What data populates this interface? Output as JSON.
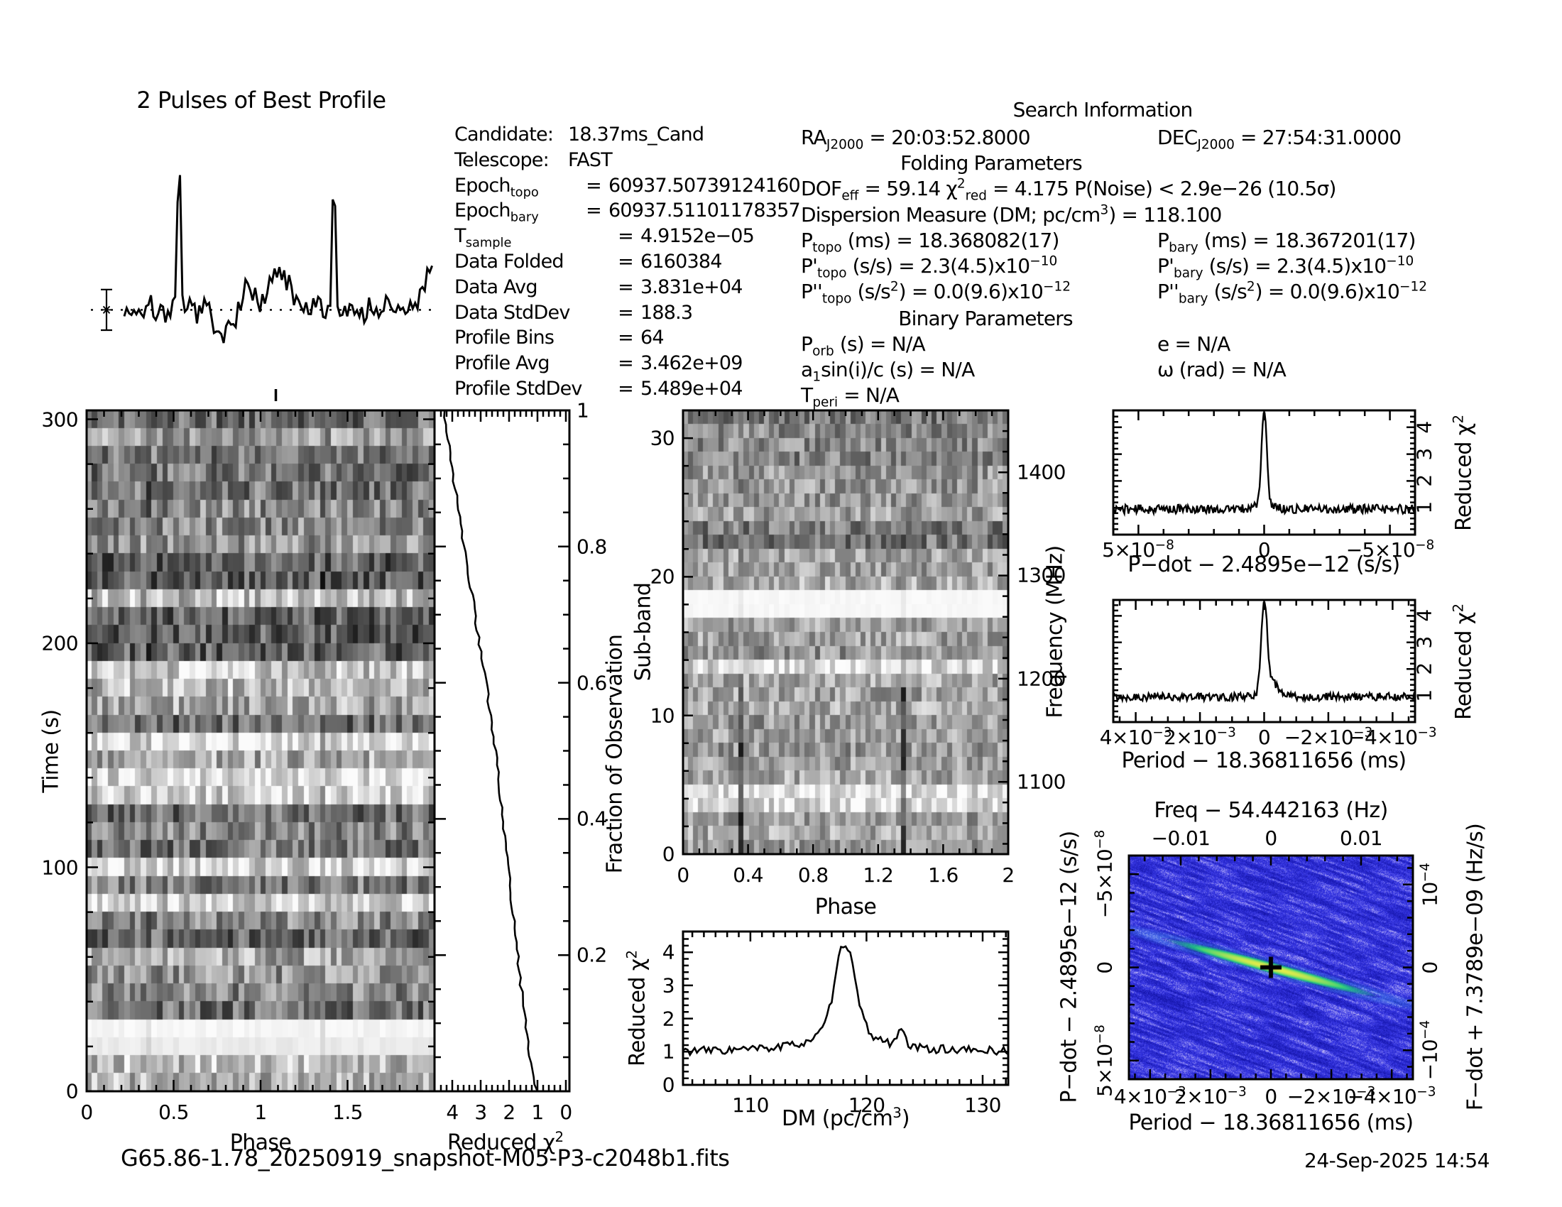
{
  "profile_title": "2 Pulses of Best Profile",
  "filename": "G65.86-1.78_20250919_snapshot-M05-P3-c2048b1.fits",
  "generated": "24-Sep-2025 14:54",
  "info_left": {
    "lines": [
      {
        "label": [
          {
            "t": "Candidate:"
          }
        ],
        "eq": "",
        "value": "18.37ms_Cand",
        "labw": 160
      },
      {
        "label": [
          {
            "t": "Telescope:"
          }
        ],
        "eq": "",
        "value": "FAST",
        "labw": 160
      },
      {
        "label": [
          {
            "t": "Epoch"
          },
          {
            "t": "topo",
            "s": "sub"
          }
        ],
        "eq": "=",
        "value": "60937.50739124160",
        "labw": 175
      },
      {
        "label": [
          {
            "t": "Epoch"
          },
          {
            "t": "bary",
            "s": "sub"
          }
        ],
        "eq": "=",
        "value": "60937.51101178357",
        "labw": 175
      },
      {
        "label": [
          {
            "t": "T"
          },
          {
            "t": "sample",
            "s": "sub"
          }
        ],
        "eq": "=",
        "value": "4.9152e−05",
        "labw": 220
      },
      {
        "label": [
          {
            "t": "Data Folded"
          }
        ],
        "eq": "=",
        "value": "6160384",
        "labw": 220
      },
      {
        "label": [
          {
            "t": "Data Avg"
          }
        ],
        "eq": "=",
        "value": "3.831e+04",
        "labw": 220
      },
      {
        "label": [
          {
            "t": "Data StdDev"
          }
        ],
        "eq": "=",
        "value": "188.3",
        "labw": 220
      },
      {
        "label": [
          {
            "t": "Profile Bins"
          }
        ],
        "eq": "=",
        "value": "64",
        "labw": 220
      },
      {
        "label": [
          {
            "t": "Profile Avg"
          }
        ],
        "eq": "=",
        "value": "3.462e+09",
        "labw": 220
      },
      {
        "label": [
          {
            "t": "Profile StdDev"
          }
        ],
        "eq": "=",
        "value": "5.489e+04",
        "labw": 220
      }
    ]
  },
  "search_info": {
    "title": "Search Information",
    "ra": [
      {
        "t": "RA"
      },
      {
        "t": "J2000",
        "s": "sub"
      },
      {
        "t": " = 20:03:52.8000"
      }
    ],
    "dec": [
      {
        "t": "DEC"
      },
      {
        "t": "J2000",
        "s": "sub"
      },
      {
        "t": " = 27:54:31.0000"
      }
    ],
    "folding_header": "Folding Parameters",
    "dof": [
      {
        "t": "DOF"
      },
      {
        "t": "eff",
        "s": "sub"
      },
      {
        "t": " = 59.14   "
      },
      {
        "t": "χ"
      },
      {
        "t": "2",
        "s": "sup"
      },
      {
        "t": "red",
        "s": "sub"
      },
      {
        "t": " = 4.175   P(Noise) < 2.9e−26   (10.5σ)"
      }
    ],
    "dm_line": [
      {
        "t": "Dispersion Measure (DM; pc/cm"
      },
      {
        "t": "3",
        "s": "sup"
      },
      {
        "t": ") = 118.100"
      }
    ],
    "ptopo": [
      {
        "t": "P"
      },
      {
        "t": "topo",
        "s": "sub"
      },
      {
        "t": " (ms) =  18.368082(17)"
      }
    ],
    "pbary": [
      {
        "t": "P"
      },
      {
        "t": "bary",
        "s": "sub"
      },
      {
        "t": " (ms) =  18.367201(17)"
      }
    ],
    "pdtopo": [
      {
        "t": "P'"
      },
      {
        "t": "topo",
        "s": "sub"
      },
      {
        "t": " (s/s) =  2.3(4.5)x10"
      },
      {
        "t": "−10",
        "s": "sup"
      }
    ],
    "pdbary": [
      {
        "t": "P'"
      },
      {
        "t": "bary",
        "s": "sub"
      },
      {
        "t": " (s/s) =  2.3(4.5)x10"
      },
      {
        "t": "−10",
        "s": "sup"
      }
    ],
    "pddtopo": [
      {
        "t": "P''"
      },
      {
        "t": "topo",
        "s": "sub"
      },
      {
        "t": " (s/s"
      },
      {
        "t": "2",
        "s": "sup"
      },
      {
        "t": ") = 0.0(9.6)x10"
      },
      {
        "t": "−12",
        "s": "sup"
      }
    ],
    "pddbary": [
      {
        "t": "P''"
      },
      {
        "t": "bary",
        "s": "sub"
      },
      {
        "t": " (s/s"
      },
      {
        "t": "2",
        "s": "sup"
      },
      {
        "t": ") = 0.0(9.6)x10"
      },
      {
        "t": "−12",
        "s": "sup"
      }
    ],
    "binary_header": "Binary Parameters",
    "porb": [
      {
        "t": "P"
      },
      {
        "t": "orb",
        "s": "sub"
      },
      {
        "t": " (s) = N/A"
      }
    ],
    "ecc": [
      {
        "t": "e = N/A"
      }
    ],
    "asini": [
      {
        "t": "a"
      },
      {
        "t": "1",
        "s": "sub"
      },
      {
        "t": "sin(i)/c (s) = N/A"
      }
    ],
    "omega": [
      {
        "t": "ω (rad) = N/A"
      }
    ],
    "tperi": [
      {
        "t": "T"
      },
      {
        "t": "peri",
        "s": "sub"
      },
      {
        "t": " = N/A"
      }
    ]
  },
  "chart_data": [
    {
      "id": "best_profile",
      "type": "line",
      "title": "2 Pulses of Best Profile",
      "x_range": [
        0,
        2
      ],
      "n_profile_bins": 64,
      "peak_phases": [
        0.35,
        1.35
      ],
      "peak_height_sigma": 10.5,
      "annotations": "dotted horizontal line at profile mean; 1-sigma error bar with star marker at left; small phase marker tick below panel"
    },
    {
      "id": "time_vs_phase",
      "type": "heatmap",
      "xlabel": "Phase",
      "ylabel": "Time (s)",
      "x_range": [
        0,
        2
      ],
      "y_range": [
        0,
        304
      ],
      "x_ticks": [
        "0",
        "0.5",
        "1",
        "1.5"
      ],
      "y_ticks": [
        "300",
        "200",
        "100",
        "0"
      ],
      "description": "greyscale of folded intensity, 64 phase bins x 38 time rows, faint dark lanes at pulse phases 0.35 and 1.35, bright blank row near t=25s"
    },
    {
      "id": "chi2_vs_fraction",
      "type": "line",
      "xlabel_rich": [
        {
          "t": "Reduced "
        },
        {
          "t": "χ"
        },
        {
          "t": "2",
          "s": "sup"
        }
      ],
      "right_label": "Fraction of Observation",
      "x_ticks": [
        "4",
        "3",
        "2",
        "1",
        "0"
      ],
      "right_ticks": [
        "1",
        "0.8",
        "0.6",
        "0.4",
        "0.2"
      ],
      "x_range": [
        4.63,
        0
      ],
      "series_note": "cumulative reduced chi2 grows from 1.0 at fraction 0 to about 4.2 at fraction 1"
    },
    {
      "id": "subband_vs_phase",
      "type": "heatmap",
      "xlabel": "Phase",
      "ylabel": "Sub-band",
      "right_label": "Frequency (MHz)",
      "n_subbands": 32,
      "x_ticks": [
        "0",
        "0.4",
        "0.8",
        "1.2",
        "1.6",
        "2"
      ],
      "y_ticks": [
        "0",
        "10",
        "20",
        "30"
      ],
      "right_ticks": [
        "1400",
        "1300",
        "1200",
        "1100"
      ],
      "description": "greyscale of intensity vs sub-band and phase; blank white band near 1200 MHz; dark RFI bands near sub-bands 22-23 and 28-31; dark vertical pulse lanes at phases 0.35 and 1.35 in lower sub-bands"
    },
    {
      "id": "chi2_vs_dm",
      "type": "line",
      "xlabel_rich": [
        {
          "t": "DM (pc/cm"
        },
        {
          "t": "3",
          "s": "sup"
        },
        {
          "t": ")"
        }
      ],
      "ylabel_rich": [
        {
          "t": "Reduced "
        },
        {
          "t": "χ"
        },
        {
          "t": "2",
          "s": "sup"
        }
      ],
      "x_range": [
        104.2,
        132.2
      ],
      "x_ticks": [
        "110",
        "120",
        "130"
      ],
      "y_ticks": [
        "0",
        "1",
        "2",
        "3",
        "4"
      ],
      "peak": {
        "dm": 118.1,
        "reduced_chi2": 4.25
      },
      "baseline_chi2": 1.0
    },
    {
      "id": "chi2_vs_pdot",
      "type": "line",
      "xlabel": "P−dot − 2.4895e−12 (s/s)",
      "right_label_rich": [
        {
          "t": "Reduced "
        },
        {
          "t": "χ"
        },
        {
          "t": "2",
          "s": "sup"
        }
      ],
      "x_ticks_rich": [
        [
          {
            "t": "5×10"
          },
          {
            "t": "−8",
            "s": "sup"
          }
        ],
        [
          {
            "t": "0"
          }
        ],
        [
          {
            "t": "−5×10"
          },
          {
            "t": "−8",
            "s": "sup"
          }
        ]
      ],
      "x_ticks_values": [
        5e-08,
        0,
        -5e-08
      ],
      "right_ticks": [
        "1",
        "2",
        "3",
        "4"
      ],
      "peak": {
        "x": 0,
        "reduced_chi2": 4.4
      },
      "baseline_chi2": 1.0
    },
    {
      "id": "chi2_vs_period",
      "type": "line",
      "xlabel": "Period − 18.36811656 (ms)",
      "right_label_rich": [
        {
          "t": "Reduced "
        },
        {
          "t": "χ"
        },
        {
          "t": "2",
          "s": "sup"
        }
      ],
      "x_ticks_rich": [
        [
          {
            "t": "4×10"
          },
          {
            "t": "−3",
            "s": "sup"
          }
        ],
        [
          {
            "t": "2×10"
          },
          {
            "t": "−3",
            "s": "sup"
          }
        ],
        [
          {
            "t": "0"
          }
        ],
        [
          {
            "t": "−2×10"
          },
          {
            "t": "−3",
            "s": "sup"
          }
        ],
        [
          {
            "t": "−4×10"
          },
          {
            "t": "−3",
            "s": "sup"
          }
        ]
      ],
      "x_ticks_values": [
        0.004,
        0.002,
        0,
        -0.002,
        -0.004
      ],
      "right_ticks": [
        "1",
        "2",
        "3",
        "4"
      ],
      "peak": {
        "x": 0,
        "reduced_chi2": 4.5
      },
      "baseline_chi2": 1.0
    },
    {
      "id": "period_pdot_plane",
      "type": "heatmap",
      "title": "Freq − 54.442163 (Hz)",
      "top_ticks": [
        "−0.01",
        "0",
        "0.01"
      ],
      "left_label": "P−dot − 2.4895e−12 (s/s)",
      "left_ticks_rich": [
        [
          {
            "t": "−5×10"
          },
          {
            "t": "−8",
            "s": "sup"
          }
        ],
        [
          {
            "t": "0"
          }
        ],
        [
          {
            "t": "5×10"
          },
          {
            "t": "−8",
            "s": "sup"
          }
        ]
      ],
      "right_label": "F−dot + 7.3789e−09 (Hz/s)",
      "right_ticks_rich": [
        [
          {
            "t": "10"
          },
          {
            "t": "−4",
            "s": "sup"
          }
        ],
        [
          {
            "t": "0"
          }
        ],
        [
          {
            "t": "−10"
          },
          {
            "t": "−4",
            "s": "sup"
          }
        ]
      ],
      "xlabel": "Period − 18.36811656 (ms)",
      "x_ticks_rich": [
        [
          {
            "t": "4×10"
          },
          {
            "t": "−3",
            "s": "sup"
          }
        ],
        [
          {
            "t": "2×10"
          },
          {
            "t": "−3",
            "s": "sup"
          }
        ],
        [
          {
            "t": "0"
          }
        ],
        [
          {
            "t": "−2×10"
          },
          {
            "t": "−3",
            "s": "sup"
          }
        ],
        [
          {
            "t": "−4×10"
          },
          {
            "t": "−3",
            "s": "sup"
          }
        ]
      ],
      "marker": "black cross at best period / p-dot",
      "colormap": "blue noise background with diagonal pale streaks and a green-yellow signal ridge through center"
    }
  ]
}
